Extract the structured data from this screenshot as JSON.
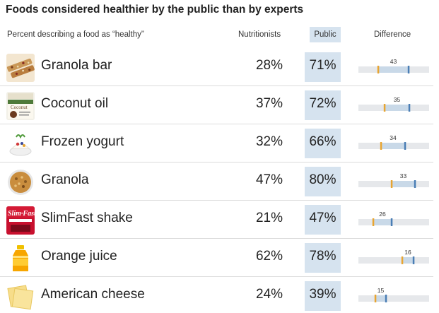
{
  "title": "Foods considered healthier by the public than by experts",
  "subtitle": "Percent describing a food as “healthy”",
  "columns": {
    "nutritionists": "Nutritionists",
    "public": "Public",
    "difference": "Difference"
  },
  "colors": {
    "nutritionist": "#e8a531",
    "public": "#4a7eb5",
    "track": "#e6e8eb",
    "range": "#c9d9e8",
    "public_bg": "#d6e3ef"
  },
  "chart_data": {
    "type": "table",
    "title": "Foods considered healthier by the public than by experts",
    "subtitle": "Percent describing a food as “healthy”",
    "rows": [
      {
        "food": "Granola bar",
        "nutritionists": 28,
        "public": 71,
        "difference": 43,
        "nutritionists_label": "28%",
        "public_label": "71%",
        "difference_label": "43",
        "icon": "granola-bar-icon"
      },
      {
        "food": "Coconut oil",
        "nutritionists": 37,
        "public": 72,
        "difference": 35,
        "nutritionists_label": "37%",
        "public_label": "72%",
        "difference_label": "35",
        "icon": "coconut-oil-jar-icon"
      },
      {
        "food": "Frozen yogurt",
        "nutritionists": 32,
        "public": 66,
        "difference": 34,
        "nutritionists_label": "32%",
        "public_label": "66%",
        "difference_label": "34",
        "icon": "frozen-yogurt-icon"
      },
      {
        "food": "Granola",
        "nutritionists": 47,
        "public": 80,
        "difference": 33,
        "nutritionists_label": "47%",
        "public_label": "80%",
        "difference_label": "33",
        "icon": "granola-bowl-icon"
      },
      {
        "food": "SlimFast shake",
        "nutritionists": 21,
        "public": 47,
        "difference": 26,
        "nutritionists_label": "21%",
        "public_label": "47%",
        "difference_label": "26",
        "icon": "slimfast-can-icon"
      },
      {
        "food": "Orange juice",
        "nutritionists": 62,
        "public": 78,
        "difference": 16,
        "nutritionists_label": "62%",
        "public_label": "78%",
        "difference_label": "16",
        "icon": "orange-juice-bottle-icon"
      },
      {
        "food": "American cheese",
        "nutritionists": 24,
        "public": 39,
        "difference": 15,
        "nutritionists_label": "24%",
        "public_label": "39%",
        "difference_label": "15",
        "icon": "cheese-slices-icon"
      }
    ],
    "difference_scale": [
      0,
      100
    ]
  }
}
